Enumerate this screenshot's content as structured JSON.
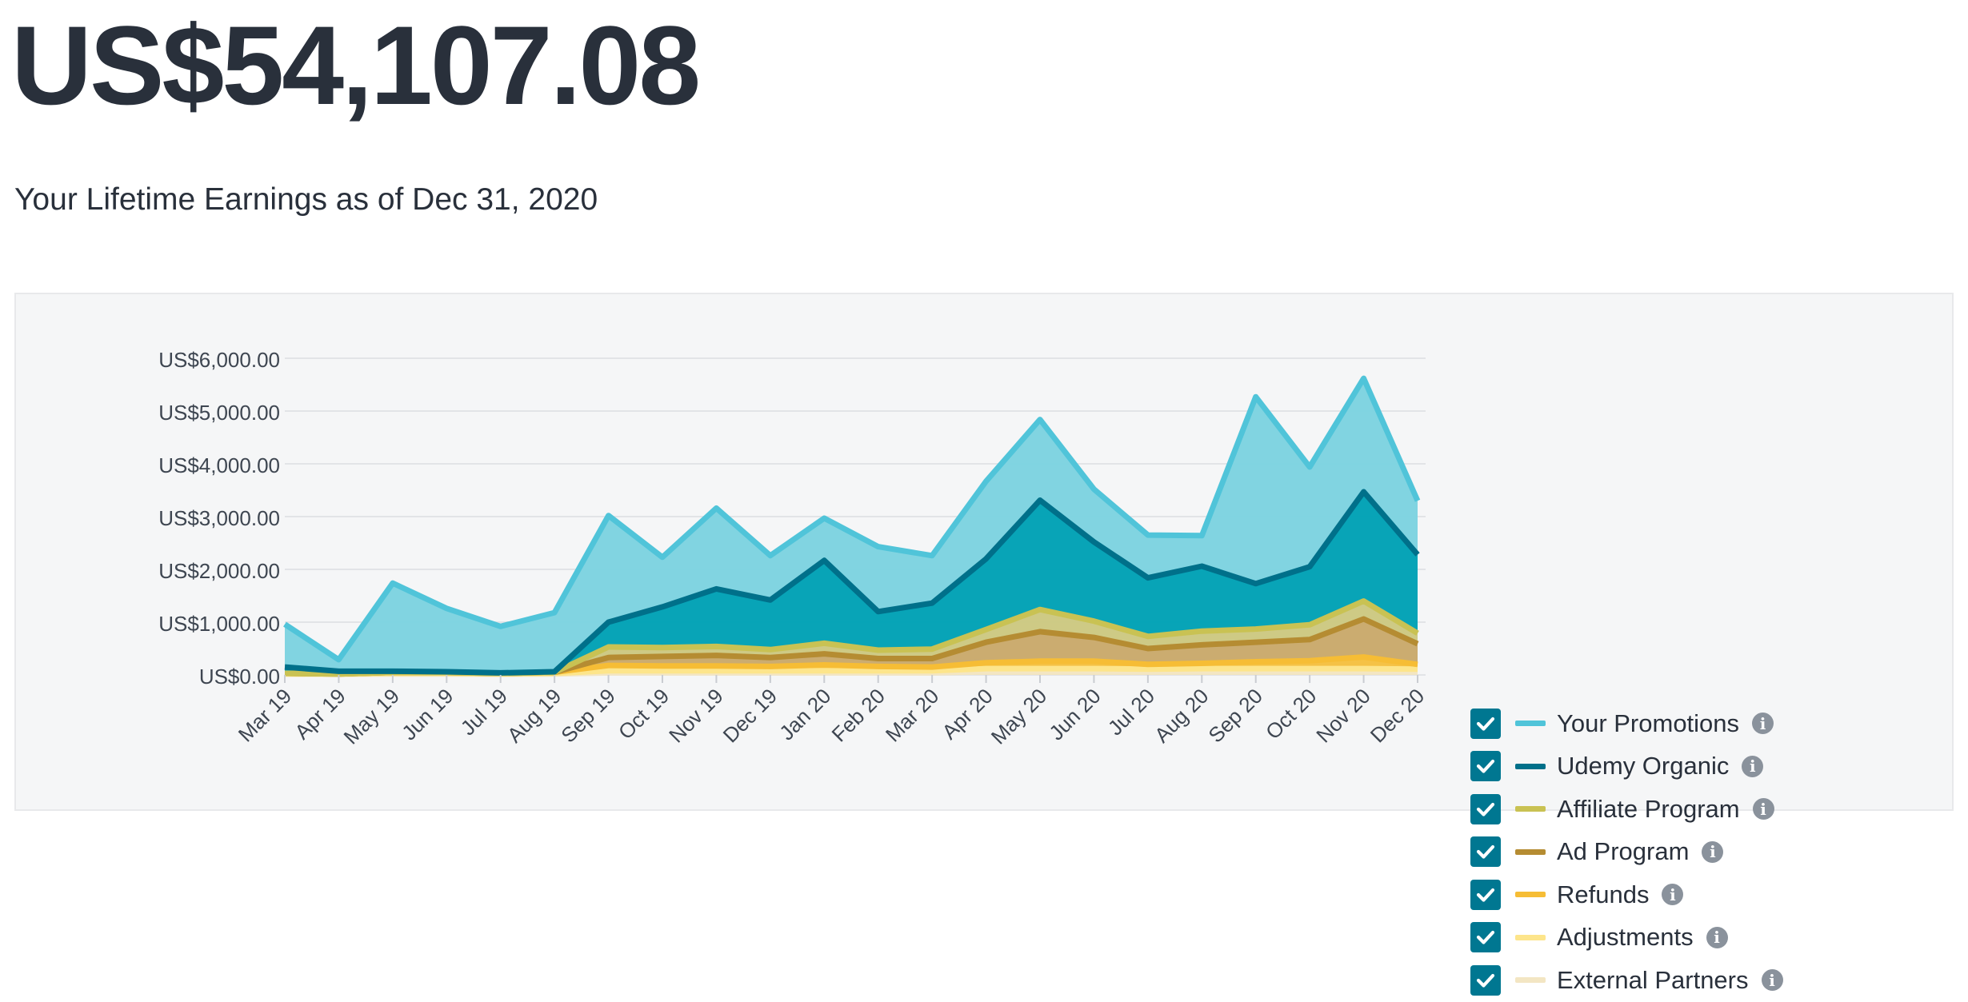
{
  "header": {
    "lifetime_total": "US$54,107.08",
    "subtitle": "Your Lifetime Earnings as of Dec 31, 2020"
  },
  "colors": {
    "text": "#29303b",
    "panel_bg": "#f5f6f7",
    "checkbox": "#007791",
    "info_icon": "#8a929c",
    "grid": "#e2e4e7"
  },
  "chart_data": {
    "type": "area",
    "stacked": true,
    "ylim": [
      0,
      6000
    ],
    "ytick_values": [
      0,
      1000,
      2000,
      3000,
      4000,
      5000,
      6000
    ],
    "ytick_labels": [
      "US$0.00",
      "US$1,000.00",
      "US$2,000.00",
      "US$3,000.00",
      "US$4,000.00",
      "US$5,000.00",
      "US$6,000.00"
    ],
    "grid": true,
    "legend_position": "right",
    "categories": [
      "Mar 19",
      "Apr 19",
      "May 19",
      "Jun 19",
      "Jul 19",
      "Aug 19",
      "Sep 19",
      "Oct 19",
      "Nov 19",
      "Dec 19",
      "Jan 20",
      "Feb 20",
      "Mar 20",
      "Apr 20",
      "May 20",
      "Jun 20",
      "Jul 20",
      "Aug 20",
      "Sep 20",
      "Oct 20",
      "Nov 20",
      "Dec 20"
    ],
    "series": [
      {
        "name": "External Partners",
        "color": "#f3e6c3",
        "fill": "#f1e2bb",
        "values": [
          20,
          15,
          20,
          20,
          15,
          20,
          40,
          40,
          40,
          40,
          40,
          40,
          40,
          60,
          60,
          60,
          60,
          60,
          60,
          60,
          60,
          60
        ]
      },
      {
        "name": "Adjustments",
        "color": "#fde58b",
        "fill": "#fbe089",
        "values": [
          0,
          0,
          10,
          10,
          5,
          10,
          40,
          40,
          40,
          40,
          40,
          40,
          40,
          60,
          60,
          60,
          50,
          60,
          60,
          60,
          60,
          50
        ]
      },
      {
        "name": "Refunds",
        "color": "#f6bd35",
        "fill": "#f5c040",
        "values": [
          10,
          5,
          20,
          15,
          10,
          20,
          100,
          90,
          90,
          80,
          110,
          80,
          70,
          110,
          140,
          140,
          90,
          100,
          130,
          150,
          220,
          90
        ]
      },
      {
        "name": "Ad Program",
        "color": "#b58c32",
        "fill": "#c9a96b",
        "values": [
          0,
          0,
          0,
          0,
          0,
          0,
          150,
          180,
          200,
          170,
          210,
          150,
          160,
          390,
          560,
          450,
          300,
          350,
          370,
          400,
          720,
          390
        ]
      },
      {
        "name": "Affiliate Program",
        "color": "#c9c253",
        "fill": "#ccc881",
        "values": [
          0,
          0,
          0,
          0,
          0,
          0,
          200,
          170,
          170,
          150,
          200,
          160,
          180,
          240,
          420,
          310,
          230,
          260,
          250,
          280,
          340,
          200
        ]
      },
      {
        "name": "Udemy Organic",
        "color": "#00708a",
        "fill": "#00a1b5",
        "values": [
          120,
          50,
          20,
          15,
          10,
          10,
          470,
          770,
          1090,
          940,
          1570,
          730,
          870,
          1340,
          2070,
          1500,
          1110,
          1230,
          860,
          1100,
          2070,
          1490
        ]
      },
      {
        "name": "Your Promotions",
        "color": "#50c4d9",
        "fill": "#7dd3e0",
        "values": [
          810,
          220,
          1670,
          1200,
          880,
          1120,
          2020,
          940,
          1530,
          840,
          800,
          1230,
          900,
          1470,
          1530,
          1000,
          810,
          580,
          3540,
          1890,
          2150,
          1020
        ]
      }
    ]
  },
  "legend": {
    "items": [
      {
        "label": "Your Promotions",
        "color": "#50c4d9",
        "checked": true
      },
      {
        "label": "Udemy Organic",
        "color": "#00708a",
        "checked": true
      },
      {
        "label": "Affiliate Program",
        "color": "#c9c253",
        "checked": true
      },
      {
        "label": "Ad Program",
        "color": "#b58c32",
        "checked": true
      },
      {
        "label": "Refunds",
        "color": "#f6bd35",
        "checked": true
      },
      {
        "label": "Adjustments",
        "color": "#fde58b",
        "checked": true
      },
      {
        "label": "External Partners",
        "color": "#f3e6c3",
        "checked": true
      }
    ],
    "info_glyph": "i"
  }
}
